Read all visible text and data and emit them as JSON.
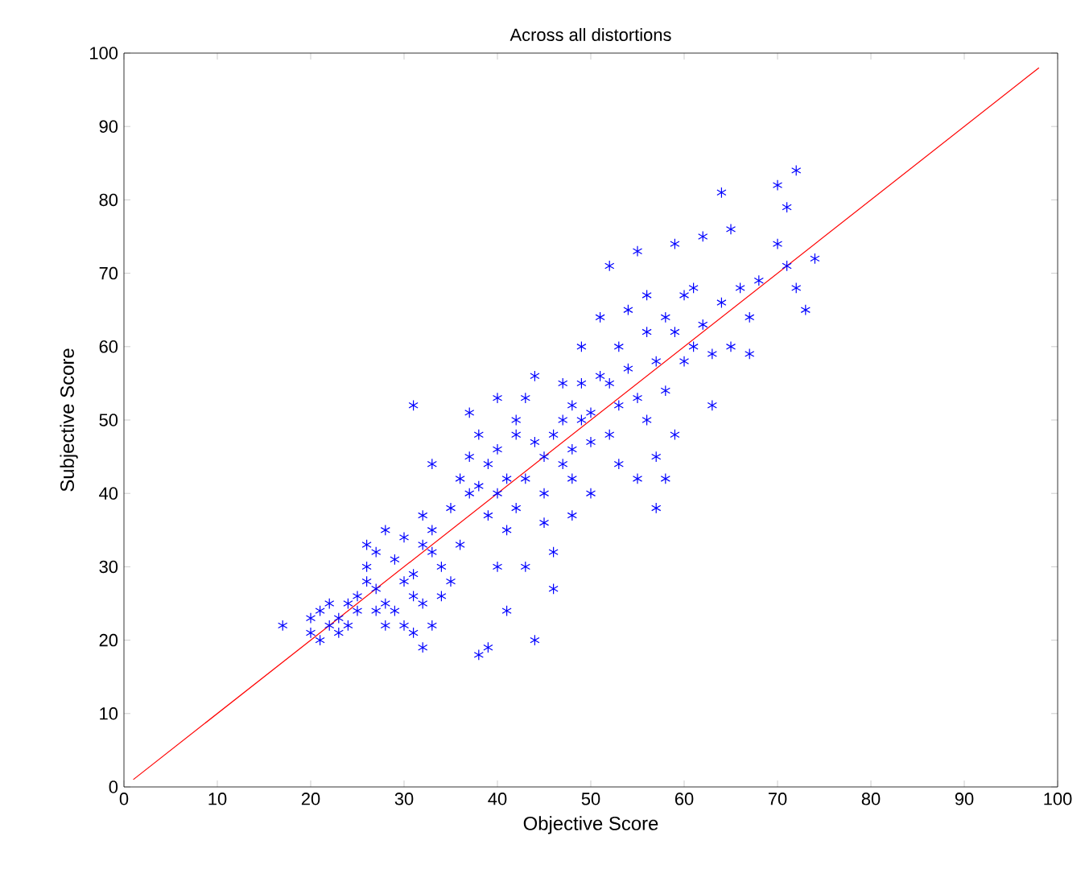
{
  "chart_data": {
    "type": "scatter",
    "title": "Across all distortions",
    "xlabel": "Objective Score",
    "ylabel": "Subjective Score",
    "xlim": [
      0,
      100
    ],
    "ylim": [
      0,
      100
    ],
    "xticks": [
      0,
      10,
      20,
      30,
      40,
      50,
      60,
      70,
      80,
      90,
      100
    ],
    "yticks": [
      0,
      10,
      20,
      30,
      40,
      50,
      60,
      70,
      80,
      90,
      100
    ],
    "grid": false,
    "marker": "cross",
    "series": [
      {
        "color": "#0000ff",
        "x": [
          17,
          20,
          20,
          21,
          21,
          22,
          22,
          23,
          23,
          24,
          24,
          25,
          25,
          26,
          26,
          26,
          27,
          27,
          27,
          28,
          28,
          28,
          29,
          29,
          30,
          30,
          30,
          31,
          31,
          31,
          31,
          32,
          32,
          32,
          32,
          33,
          33,
          33,
          33,
          34,
          34,
          35,
          35,
          36,
          36,
          37,
          37,
          37,
          38,
          38,
          38,
          39,
          39,
          39,
          40,
          40,
          40,
          40,
          41,
          41,
          41,
          42,
          42,
          42,
          43,
          43,
          43,
          44,
          44,
          44,
          45,
          45,
          45,
          46,
          46,
          46,
          47,
          47,
          47,
          48,
          48,
          48,
          48,
          49,
          49,
          49,
          50,
          50,
          50,
          51,
          51,
          52,
          52,
          52,
          53,
          53,
          53,
          54,
          54,
          55,
          55,
          55,
          56,
          56,
          56,
          57,
          57,
          57,
          58,
          58,
          58,
          59,
          59,
          59,
          60,
          60,
          61,
          61,
          62,
          62,
          63,
          63,
          64,
          64,
          65,
          65,
          66,
          67,
          67,
          68,
          70,
          70,
          71,
          71,
          72,
          72,
          73,
          74
        ],
        "values": [
          22,
          23,
          21,
          20,
          24,
          22,
          25,
          21,
          23,
          25,
          22,
          26,
          24,
          28,
          30,
          33,
          27,
          24,
          32,
          22,
          25,
          35,
          24,
          31,
          34,
          22,
          28,
          21,
          26,
          52,
          29,
          37,
          33,
          19,
          25,
          44,
          35,
          32,
          22,
          26,
          30,
          28,
          38,
          42,
          33,
          40,
          51,
          45,
          48,
          41,
          18,
          44,
          19,
          37,
          46,
          53,
          40,
          30,
          42,
          24,
          35,
          48,
          38,
          50,
          42,
          53,
          30,
          20,
          47,
          56,
          45,
          40,
          36,
          48,
          27,
          32,
          55,
          50,
          44,
          52,
          46,
          42,
          37,
          50,
          55,
          60,
          51,
          47,
          40,
          64,
          56,
          71,
          55,
          48,
          60,
          52,
          44,
          57,
          65,
          73,
          42,
          53,
          62,
          50,
          67,
          58,
          45,
          38,
          64,
          42,
          54,
          74,
          62,
          48,
          58,
          67,
          60,
          68,
          63,
          75,
          59,
          52,
          66,
          81,
          60,
          76,
          68,
          64,
          59,
          69,
          74,
          82,
          71,
          79,
          84,
          68,
          65,
          72
        ]
      },
      {
        "type": "line",
        "color": "#ff0000",
        "marker": "none",
        "x": [
          1,
          98
        ],
        "values": [
          1,
          98
        ]
      }
    ]
  }
}
